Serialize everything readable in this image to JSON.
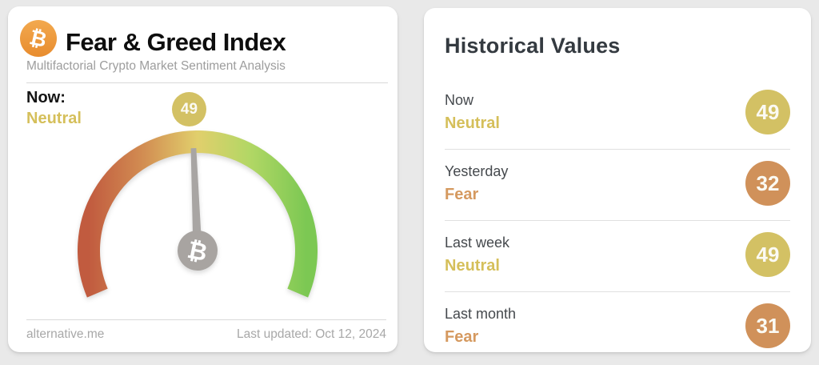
{
  "left_card": {
    "title": "Fear & Greed Index",
    "subtitle": "Multifactorial Crypto Market Sentiment Analysis",
    "bitcoin_symbol": "₿",
    "now_label": "Now:",
    "now_sentiment": "Neutral",
    "now_tone": "neutral",
    "gauge_value": "49",
    "footer_site": "alternative.me",
    "footer_updated": "Last updated: Oct 12, 2024"
  },
  "right_card": {
    "title": "Historical Values",
    "rows": [
      {
        "label": "Now",
        "sentiment": "Neutral",
        "value": "49",
        "tone": "neutral"
      },
      {
        "label": "Yesterday",
        "sentiment": "Fear",
        "value": "32",
        "tone": "fear"
      },
      {
        "label": "Last week",
        "sentiment": "Neutral",
        "value": "49",
        "tone": "neutral"
      },
      {
        "label": "Last month",
        "sentiment": "Fear",
        "value": "31",
        "tone": "fear"
      }
    ]
  },
  "colors": {
    "neutral_gold": "#d3c164",
    "fear_orange": "#d0915a",
    "bitcoin_orange": "#ec9638",
    "gauge_red": "#c15b3f",
    "gauge_yellow": "#e1cf6c",
    "gauge_green": "#7cc853",
    "needle_gray": "#a8a5a3"
  },
  "chart_data": {
    "type": "gauge",
    "title": "Fear & Greed Index",
    "value": 49,
    "min": 0,
    "max": 100,
    "sweep_degrees": 226,
    "current_sentiment": "Neutral",
    "color_scale": [
      "#c15b3f",
      "#d28d52",
      "#e1cf6c",
      "#b2d765",
      "#7cc853"
    ],
    "historical": [
      {
        "period": "Now",
        "value": 49,
        "sentiment": "Neutral"
      },
      {
        "period": "Yesterday",
        "value": 32,
        "sentiment": "Fear"
      },
      {
        "period": "Last week",
        "value": 49,
        "sentiment": "Neutral"
      },
      {
        "period": "Last month",
        "value": 31,
        "sentiment": "Fear"
      }
    ]
  }
}
